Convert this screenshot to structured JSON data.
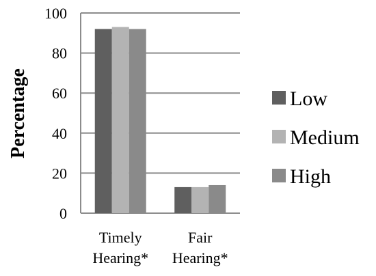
{
  "chart_data": {
    "type": "bar",
    "ylabel": "Percentage",
    "ylim": [
      0,
      100
    ],
    "yticks": [
      "0",
      "20",
      "40",
      "60",
      "80",
      "100"
    ],
    "grid": true,
    "legend_position": "right",
    "categories": [
      [
        "Timely",
        "Hearing*"
      ],
      [
        "Fair",
        "Hearing*"
      ]
    ],
    "series": [
      {
        "name": "Low",
        "color": "#5f5f5f",
        "values": [
          92,
          13
        ]
      },
      {
        "name": "Medium",
        "color": "#b3b3b3",
        "values": [
          93,
          13
        ]
      },
      {
        "name": "High",
        "color": "#8a8a8a",
        "values": [
          92,
          14
        ]
      }
    ]
  }
}
